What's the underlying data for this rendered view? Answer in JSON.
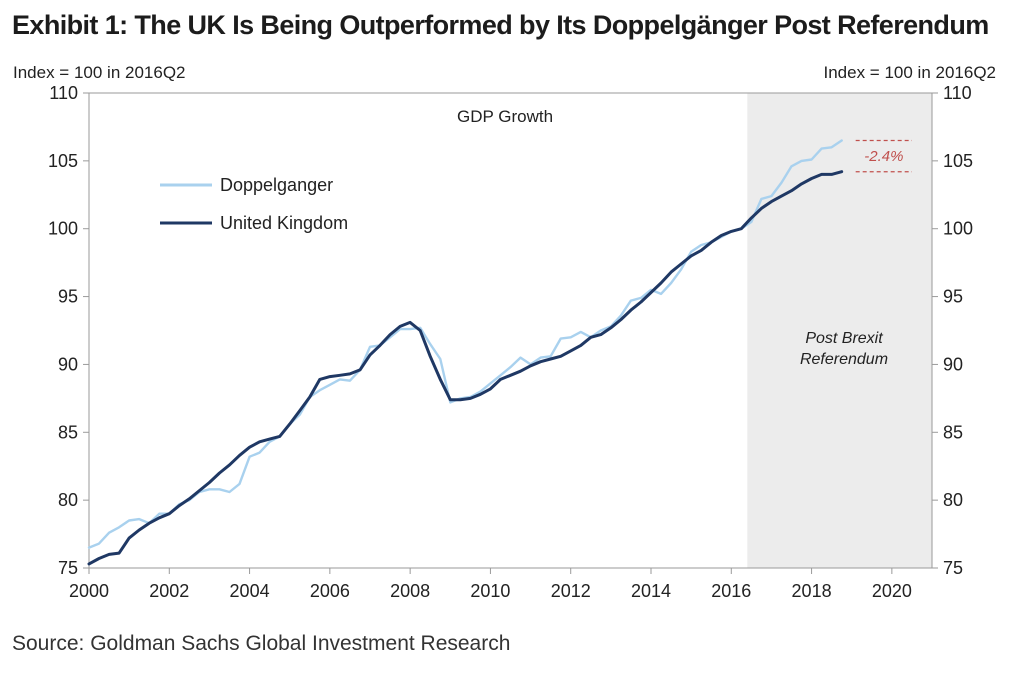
{
  "title": "Exhibit 1: The UK Is Being Outperformed by Its Doppelgänger Post Referendum",
  "source": "Source: Goldman Sachs Global Investment Research",
  "chart_data": {
    "type": "line",
    "annotation": "GDP Growth",
    "ylabel_left": "Index = 100 in 2016Q2",
    "ylabel_right": "Index = 100 in 2016Q2",
    "xlim": [
      2000,
      2021
    ],
    "ylim": [
      75,
      110
    ],
    "x_ticks": [
      "2000",
      "2002",
      "2004",
      "2006",
      "2008",
      "2010",
      "2012",
      "2014",
      "2016",
      "2018",
      "2020"
    ],
    "y_ticks": [
      "75",
      "80",
      "85",
      "90",
      "95",
      "100",
      "105",
      "110"
    ],
    "legend_position": "upper-left",
    "grid": false,
    "shaded_region": {
      "x_start": 2016.4,
      "x_end": 2021,
      "label_line1": "Post Brexit",
      "label_line2": "Referendum",
      "color": "#ececec"
    },
    "difference_label": "-2.4%",
    "difference_color": "#c0504d",
    "series": [
      {
        "name": "Doppelganger",
        "color": "#a9d1ee",
        "x": [
          2000.0,
          2000.25,
          2000.5,
          2000.75,
          2001.0,
          2001.25,
          2001.5,
          2001.75,
          2002.0,
          2002.25,
          2002.5,
          2002.75,
          2003.0,
          2003.25,
          2003.5,
          2003.75,
          2004.0,
          2004.25,
          2004.5,
          2004.75,
          2005.0,
          2005.25,
          2005.5,
          2005.75,
          2006.0,
          2006.25,
          2006.5,
          2006.75,
          2007.0,
          2007.25,
          2007.5,
          2007.75,
          2008.0,
          2008.25,
          2008.5,
          2008.75,
          2009.0,
          2009.25,
          2009.5,
          2009.75,
          2010.0,
          2010.25,
          2010.5,
          2010.75,
          2011.0,
          2011.25,
          2011.5,
          2011.75,
          2012.0,
          2012.25,
          2012.5,
          2012.75,
          2013.0,
          2013.25,
          2013.5,
          2013.75,
          2014.0,
          2014.25,
          2014.5,
          2014.75,
          2015.0,
          2015.25,
          2015.5,
          2015.75,
          2016.0,
          2016.25,
          2016.5,
          2016.75,
          2017.0,
          2017.25,
          2017.5,
          2017.75,
          2018.0,
          2018.25,
          2018.5,
          2018.75
        ],
        "values": [
          76.5,
          76.8,
          77.6,
          78.0,
          78.5,
          78.6,
          78.3,
          79.0,
          79.0,
          79.7,
          80.0,
          80.6,
          80.8,
          80.8,
          80.6,
          81.2,
          83.2,
          83.5,
          84.3,
          84.7,
          85.6,
          86.3,
          87.6,
          88.1,
          88.5,
          88.9,
          88.8,
          89.6,
          91.3,
          91.4,
          92.0,
          92.6,
          92.6,
          92.7,
          91.5,
          90.4,
          87.2,
          87.5,
          87.6,
          88.0,
          88.6,
          89.2,
          89.8,
          90.5,
          90.0,
          90.5,
          90.6,
          91.9,
          92.0,
          92.4,
          92.0,
          92.5,
          92.8,
          93.6,
          94.7,
          94.9,
          95.5,
          95.2,
          96.0,
          97.0,
          98.3,
          98.8,
          99.0,
          99.4,
          99.8,
          100.0,
          100.5,
          102.2,
          102.4,
          103.4,
          104.6,
          105.0,
          105.1,
          105.9,
          106.0,
          106.5
        ]
      },
      {
        "name": "United Kingdom",
        "color": "#1f3864",
        "x": [
          2000.0,
          2000.25,
          2000.5,
          2000.75,
          2001.0,
          2001.25,
          2001.5,
          2001.75,
          2002.0,
          2002.25,
          2002.5,
          2002.75,
          2003.0,
          2003.25,
          2003.5,
          2003.75,
          2004.0,
          2004.25,
          2004.5,
          2004.75,
          2005.0,
          2005.25,
          2005.5,
          2005.75,
          2006.0,
          2006.25,
          2006.5,
          2006.75,
          2007.0,
          2007.25,
          2007.5,
          2007.75,
          2008.0,
          2008.25,
          2008.5,
          2008.75,
          2009.0,
          2009.25,
          2009.5,
          2009.75,
          2010.0,
          2010.25,
          2010.5,
          2010.75,
          2011.0,
          2011.25,
          2011.5,
          2011.75,
          2012.0,
          2012.25,
          2012.5,
          2012.75,
          2013.0,
          2013.25,
          2013.5,
          2013.75,
          2014.0,
          2014.25,
          2014.5,
          2014.75,
          2015.0,
          2015.25,
          2015.5,
          2015.75,
          2016.0,
          2016.25,
          2016.5,
          2016.75,
          2017.0,
          2017.25,
          2017.5,
          2017.75,
          2018.0,
          2018.25,
          2018.5,
          2018.75
        ],
        "values": [
          75.3,
          75.7,
          76.0,
          76.1,
          77.2,
          77.8,
          78.3,
          78.7,
          79.0,
          79.6,
          80.1,
          80.7,
          81.3,
          82.0,
          82.6,
          83.3,
          83.9,
          84.3,
          84.5,
          84.7,
          85.6,
          86.6,
          87.6,
          88.9,
          89.1,
          89.2,
          89.3,
          89.6,
          90.7,
          91.4,
          92.2,
          92.8,
          93.1,
          92.5,
          90.6,
          88.9,
          87.4,
          87.4,
          87.5,
          87.8,
          88.2,
          88.9,
          89.2,
          89.5,
          89.9,
          90.2,
          90.4,
          90.6,
          91.0,
          91.4,
          92.0,
          92.2,
          92.7,
          93.3,
          94.0,
          94.6,
          95.3,
          96.0,
          96.8,
          97.4,
          98.0,
          98.4,
          99.0,
          99.5,
          99.8,
          100.0,
          100.8,
          101.5,
          102.0,
          102.4,
          102.8,
          103.3,
          103.7,
          104.0,
          104.0,
          104.2
        ]
      }
    ]
  }
}
